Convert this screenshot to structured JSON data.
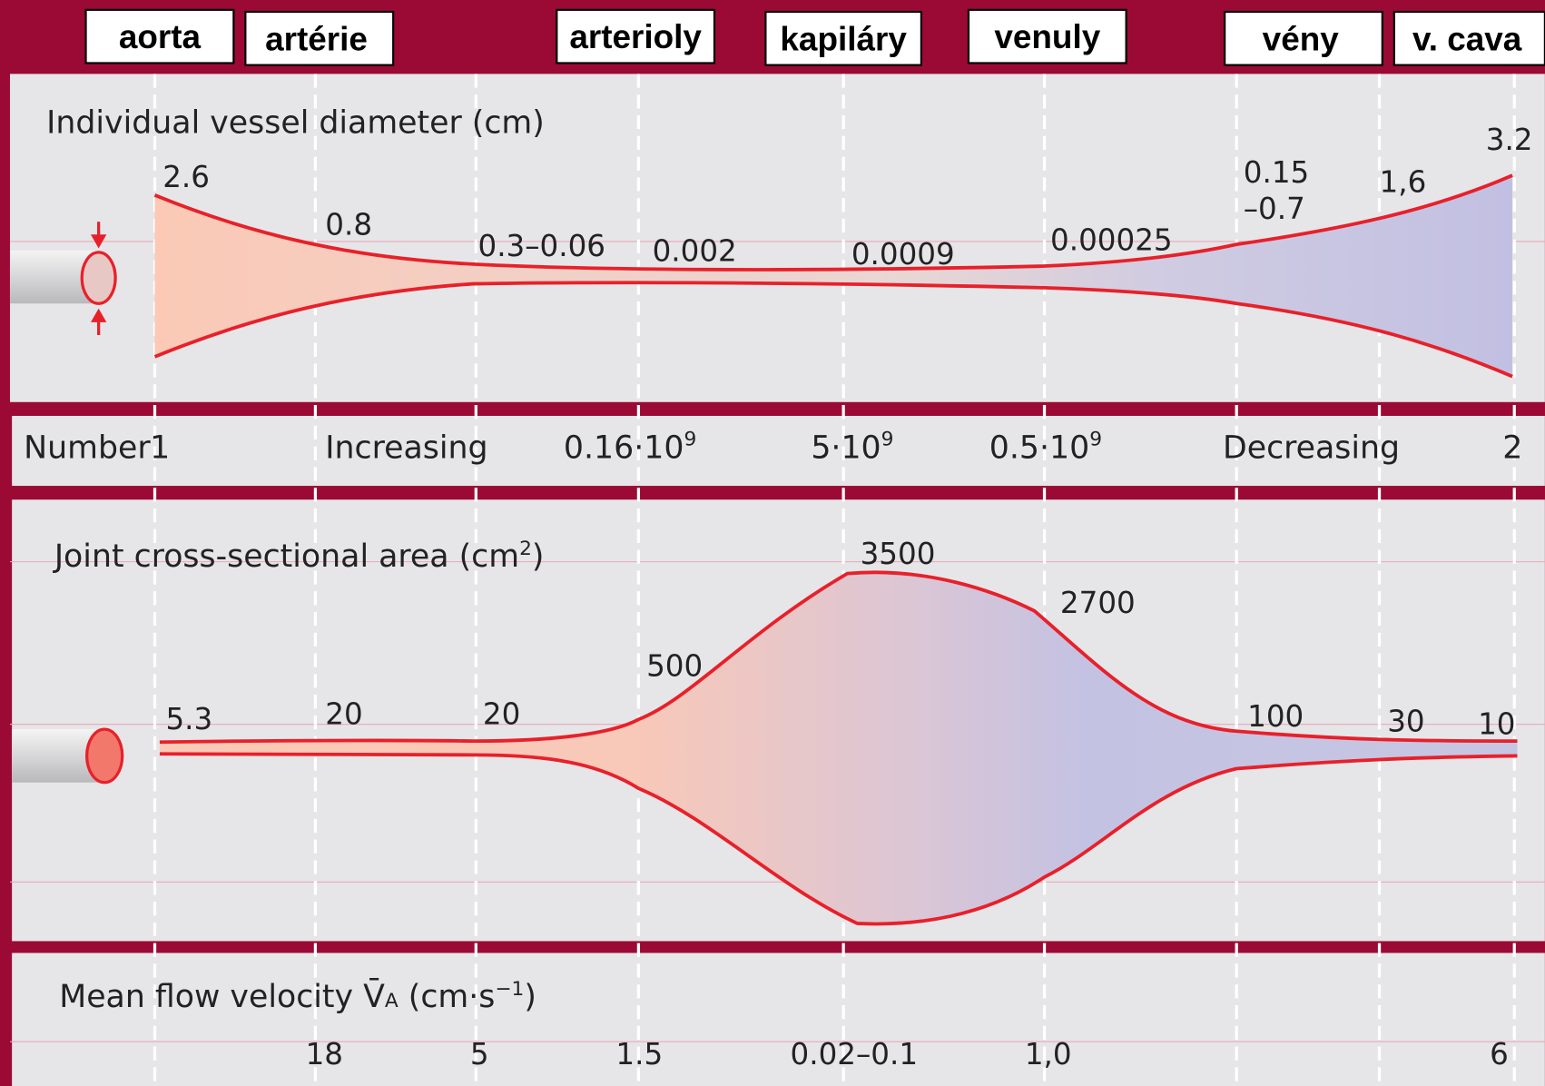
{
  "header": {
    "labels": [
      "aorta",
      "artérie",
      "arterioly",
      "kapiláry",
      "venuly",
      "vény",
      "v. cava"
    ]
  },
  "diameter": {
    "title": "Individual vessel diameter (cm)",
    "labels": [
      "2.6",
      "0.8",
      "0.3–0.06",
      "0.002",
      "0.0009",
      "0.00025",
      "0.15",
      "–0.7",
      "1,6",
      "3.2"
    ]
  },
  "number": {
    "label": "Number",
    "values": [
      {
        "text": "1"
      },
      {
        "text": "Increasing"
      },
      {
        "base": "0.16·10",
        "exp": "9"
      },
      {
        "base": "5·10",
        "exp": "9"
      },
      {
        "base": "0.5·10",
        "exp": "9"
      },
      {
        "text": "Decreasing"
      },
      {
        "text": "2"
      }
    ]
  },
  "area": {
    "title": {
      "text": "Joint cross-sectional area (cm",
      "exp": "2",
      "close": ")"
    },
    "labels": [
      "5.3",
      "20",
      "20",
      "500",
      "3500",
      "2700",
      "100",
      "30",
      "10"
    ]
  },
  "velocity": {
    "title": {
      "text": "Mean flow velocity ",
      "symbol": "V̄",
      "sub": "A",
      "unit": " (cm·s",
      "exp": "−1",
      "close": ")"
    },
    "values": [
      "18",
      "5",
      "1.5",
      "0.02–0.1",
      "1,0",
      "6"
    ]
  }
}
